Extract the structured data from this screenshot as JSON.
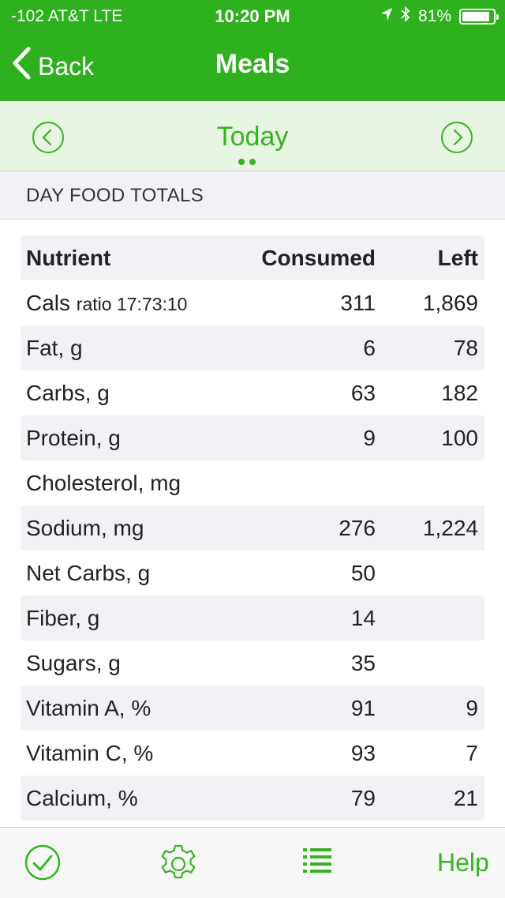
{
  "status_bar": {
    "carrier": "-102 AT&T   LTE",
    "time": "10:20 PM",
    "battery": "81%",
    "battery_level": 0.81
  },
  "nav": {
    "back_label": "Back",
    "title": "Meals"
  },
  "date_nav": {
    "label": "Today"
  },
  "section": {
    "title": "DAY FOOD TOTALS"
  },
  "table": {
    "headers": {
      "nutrient": "Nutrient",
      "consumed": "Consumed",
      "left": "Left"
    },
    "rows": [
      {
        "nutrient": "Cals",
        "note": "ratio 17:73:10",
        "consumed": "311",
        "left": "1,869"
      },
      {
        "nutrient": "Fat, g",
        "note": "",
        "consumed": "6",
        "left": "78"
      },
      {
        "nutrient": "Carbs, g",
        "note": "",
        "consumed": "63",
        "left": "182"
      },
      {
        "nutrient": "Protein, g",
        "note": "",
        "consumed": "9",
        "left": "100"
      },
      {
        "nutrient": "Cholesterol, mg",
        "note": "",
        "consumed": "",
        "left": ""
      },
      {
        "nutrient": "Sodium, mg",
        "note": "",
        "consumed": "276",
        "left": "1,224"
      },
      {
        "nutrient": "Net Carbs, g",
        "note": "",
        "consumed": "50",
        "left": ""
      },
      {
        "nutrient": "Fiber, g",
        "note": "",
        "consumed": "14",
        "left": ""
      },
      {
        "nutrient": "Sugars, g",
        "note": "",
        "consumed": "35",
        "left": ""
      },
      {
        "nutrient": "Vitamin A, %",
        "note": "",
        "consumed": "91",
        "left": "9"
      },
      {
        "nutrient": "Vitamin C, %",
        "note": "",
        "consumed": "93",
        "left": "7"
      },
      {
        "nutrient": "Calcium, %",
        "note": "",
        "consumed": "79",
        "left": "21"
      }
    ]
  },
  "tabbar": {
    "icons": [
      "check-circle-icon",
      "gear-icon",
      "list-icon"
    ],
    "help_label": "Help"
  },
  "colors": {
    "brand_green": "#2eb01f",
    "accent_green": "#34b41f",
    "date_bar_bg": "#e9f5e3",
    "row_shade": "#f2f2f6"
  }
}
